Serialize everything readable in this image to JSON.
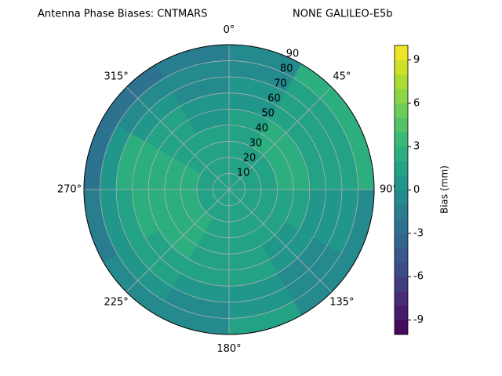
{
  "chart_data": {
    "type": "polar_contour",
    "title": "Antenna Phase Biases: CNTMARS",
    "subtitle": "NONE GALILEO-E5b",
    "colorbar_label": "Bias (mm)",
    "colormap": "viridis",
    "levels": 20,
    "clim": [
      -10,
      10
    ],
    "cticks": [
      -9,
      -6,
      -3,
      0,
      3,
      6,
      9
    ],
    "rlim": [
      0,
      90
    ],
    "rticks": [
      10,
      20,
      30,
      40,
      50,
      60,
      70,
      80,
      90
    ],
    "thetaticks": [
      {
        "value": 0,
        "label": "0°"
      },
      {
        "value": 45,
        "label": "45°"
      },
      {
        "value": 90,
        "label": "90°"
      },
      {
        "value": 135,
        "label": "135°"
      },
      {
        "value": 180,
        "label": "180°"
      },
      {
        "value": 225,
        "label": "225°"
      },
      {
        "value": 270,
        "label": "270°"
      },
      {
        "value": 315,
        "label": "315°"
      }
    ],
    "theta_bins": [
      0,
      30,
      60,
      90,
      120,
      150,
      180,
      210,
      240,
      270,
      300,
      330,
      360
    ],
    "r_bins": [
      0,
      10,
      20,
      30,
      40,
      50,
      60,
      70,
      80,
      90
    ],
    "values": [
      [
        1,
        1,
        1,
        1,
        1,
        1,
        1,
        1,
        1,
        1,
        1,
        1
      ],
      [
        1,
        1,
        1,
        1,
        1,
        1,
        1,
        1,
        1,
        1,
        1,
        1
      ],
      [
        1,
        1,
        1,
        1,
        1,
        1,
        1,
        2,
        2,
        2,
        1,
        1
      ],
      [
        1,
        2,
        2,
        1,
        1,
        1,
        1,
        2,
        2,
        2,
        1,
        1
      ],
      [
        1,
        2,
        2,
        1,
        0,
        1,
        1,
        2,
        2,
        2,
        1,
        0
      ],
      [
        0,
        1,
        1,
        0,
        0,
        1,
        1,
        1,
        2,
        2,
        1,
        0
      ],
      [
        0,
        1,
        1,
        0,
        -1,
        0,
        0,
        1,
        1,
        2,
        0,
        -1
      ],
      [
        -1,
        1,
        1,
        0,
        -1,
        0,
        -1,
        0,
        0,
        0,
        -1,
        -1
      ],
      [
        -1,
        2,
        2,
        -1,
        -1,
        1,
        -1,
        -1,
        -2,
        -3,
        -3,
        -2
      ]
    ],
    "grid": true
  }
}
